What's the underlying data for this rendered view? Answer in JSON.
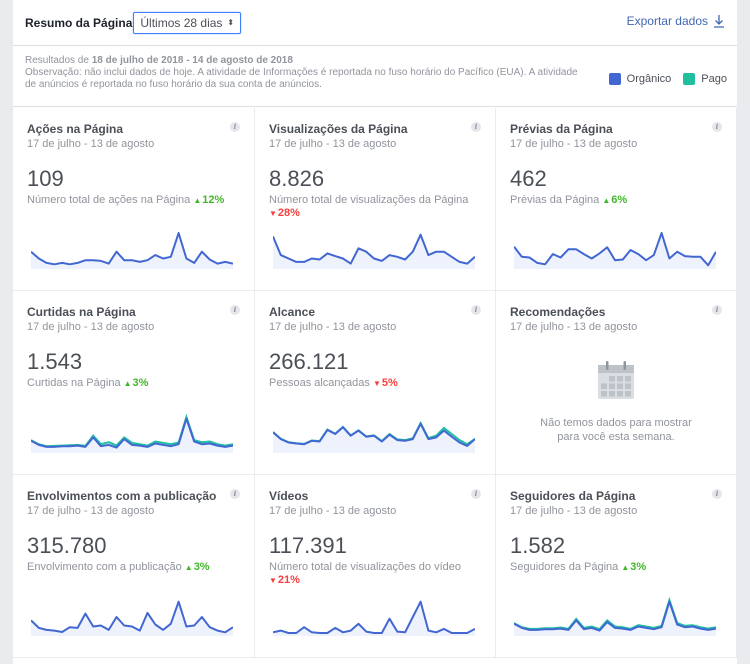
{
  "header": {
    "title": "Resumo da Página",
    "range_select": "Últimos 28 dias",
    "export_label": "Exportar dados"
  },
  "notes": {
    "results_prefix": "Resultados de ",
    "results_range": "18 de julho de 2018 - 14 de agosto de 2018",
    "observation": "Observação: não inclui dados de hoje. A atividade de Informações é reportada no fuso horário do Pacífico (EUA). A atividade de anúncios é reportada no fuso horário da sua conta de anúncios."
  },
  "legend": [
    {
      "label": "Orgânico",
      "color": "#4267d2"
    },
    {
      "label": "Pago",
      "color": "#1fbfa0"
    }
  ],
  "colors": {
    "organic": "#4267d2",
    "paid": "#1fbfa0",
    "fill": "#eef2fc",
    "up": "#42b72a",
    "down": "#fa3e3e"
  },
  "cards": [
    {
      "title": "Ações na Página",
      "date": "17 de julho - 13 de agosto",
      "value": "109",
      "desc": "Número total de ações na Página",
      "change": "12%",
      "direction": "up",
      "series": [
        0.45,
        0.25,
        0.12,
        0.08,
        0.12,
        0.08,
        0.12,
        0.2,
        0.2,
        0.18,
        0.1,
        0.45,
        0.2,
        0.2,
        0.15,
        0.2,
        0.35,
        0.25,
        0.3,
        1.0,
        0.25,
        0.12,
        0.45,
        0.22,
        0.1,
        0.15,
        0.1
      ]
    },
    {
      "title": "Visualizações da Página",
      "date": "17 de julho - 13 de agosto",
      "value": "8.826",
      "desc": "Número total de visualizações da Página",
      "change": "28%",
      "direction": "down",
      "series": [
        0.9,
        0.35,
        0.25,
        0.15,
        0.15,
        0.25,
        0.22,
        0.4,
        0.32,
        0.25,
        0.1,
        0.55,
        0.45,
        0.25,
        0.18,
        0.35,
        0.3,
        0.22,
        0.45,
        0.95,
        0.35,
        0.45,
        0.45,
        0.3,
        0.15,
        0.1,
        0.3
      ]
    },
    {
      "title": "Prévias da Página",
      "date": "17 de julho - 13 de agosto",
      "value": "462",
      "desc": "Prévias da Página",
      "change": "6%",
      "direction": "up",
      "series": [
        0.6,
        0.3,
        0.28,
        0.12,
        0.08,
        0.38,
        0.28,
        0.52,
        0.52,
        0.38,
        0.25,
        0.4,
        0.58,
        0.2,
        0.22,
        0.5,
        0.38,
        0.2,
        0.35,
        1.0,
        0.25,
        0.45,
        0.32,
        0.3,
        0.3,
        0.05,
        0.45
      ]
    },
    {
      "title": "Curtidas na Página",
      "date": "17 de julho - 13 de agosto",
      "value": "1.543",
      "desc": "Curtidas na Página",
      "change": "3%",
      "direction": "up",
      "series": [
        0.3,
        0.18,
        0.12,
        0.12,
        0.14,
        0.14,
        0.16,
        0.12,
        0.4,
        0.14,
        0.18,
        0.1,
        0.35,
        0.18,
        0.16,
        0.12,
        0.22,
        0.18,
        0.14,
        0.2,
        0.95,
        0.28,
        0.2,
        0.22,
        0.16,
        0.12,
        0.16
      ],
      "paid": [
        0.32,
        0.2,
        0.14,
        0.15,
        0.16,
        0.17,
        0.18,
        0.15,
        0.45,
        0.2,
        0.26,
        0.16,
        0.4,
        0.24,
        0.2,
        0.16,
        0.28,
        0.24,
        0.2,
        0.25,
        1.0,
        0.32,
        0.26,
        0.28,
        0.2,
        0.16,
        0.2
      ]
    },
    {
      "title": "Alcance",
      "date": "17 de julho - 13 de agosto",
      "value": "266.121",
      "desc": "Pessoas alcançadas",
      "change": "5%",
      "direction": "down",
      "series": [
        0.55,
        0.35,
        0.25,
        0.22,
        0.2,
        0.3,
        0.28,
        0.62,
        0.5,
        0.7,
        0.45,
        0.6,
        0.42,
        0.45,
        0.28,
        0.48,
        0.32,
        0.3,
        0.35,
        0.8,
        0.35,
        0.4,
        0.6,
        0.42,
        0.25,
        0.15,
        0.35
      ],
      "paid": [
        0.56,
        0.36,
        0.26,
        0.23,
        0.21,
        0.31,
        0.29,
        0.63,
        0.51,
        0.71,
        0.46,
        0.61,
        0.43,
        0.46,
        0.29,
        0.5,
        0.34,
        0.32,
        0.37,
        0.82,
        0.38,
        0.45,
        0.68,
        0.5,
        0.32,
        0.2,
        0.36
      ]
    },
    {
      "title": "Recomendações",
      "date": "17 de julho - 13 de agosto",
      "empty_text": "Não temos dados para mostrar para você esta semana."
    },
    {
      "title": "Envolvimentos com a publicação",
      "date": "17 de julho - 13 de agosto",
      "value": "315.780",
      "desc": "Envolvimento com a publicação",
      "change": "3%",
      "direction": "up",
      "series": [
        0.4,
        0.18,
        0.12,
        0.1,
        0.06,
        0.2,
        0.18,
        0.6,
        0.22,
        0.25,
        0.12,
        0.5,
        0.25,
        0.22,
        0.1,
        0.62,
        0.28,
        0.12,
        0.3,
        0.95,
        0.22,
        0.25,
        0.5,
        0.2,
        0.1,
        0.05,
        0.2
      ]
    },
    {
      "title": "Vídeos",
      "date": "17 de julho - 13 de agosto",
      "value": "117.391",
      "desc": "Número total de visualizações do vídeo",
      "change": "21%",
      "direction": "down",
      "series": [
        0.05,
        0.1,
        0.03,
        0.03,
        0.2,
        0.05,
        0.03,
        0.03,
        0.18,
        0.05,
        0.1,
        0.3,
        0.07,
        0.03,
        0.03,
        0.45,
        0.07,
        0.05,
        0.5,
        0.95,
        0.1,
        0.05,
        0.15,
        0.03,
        0.03,
        0.03,
        0.15
      ]
    },
    {
      "title": "Seguidores da Página",
      "date": "17 de julho - 13 de agosto",
      "value": "1.582",
      "desc": "Seguidores da Página",
      "change": "3%",
      "direction": "up",
      "series": [
        0.3,
        0.18,
        0.12,
        0.12,
        0.14,
        0.14,
        0.16,
        0.12,
        0.4,
        0.14,
        0.18,
        0.1,
        0.35,
        0.18,
        0.16,
        0.12,
        0.22,
        0.18,
        0.14,
        0.2,
        0.95,
        0.28,
        0.2,
        0.22,
        0.16,
        0.12,
        0.16
      ],
      "paid": [
        0.32,
        0.2,
        0.15,
        0.15,
        0.17,
        0.17,
        0.19,
        0.15,
        0.44,
        0.18,
        0.22,
        0.14,
        0.4,
        0.22,
        0.2,
        0.15,
        0.26,
        0.22,
        0.18,
        0.24,
        1.0,
        0.32,
        0.24,
        0.26,
        0.2,
        0.16,
        0.2
      ]
    }
  ]
}
